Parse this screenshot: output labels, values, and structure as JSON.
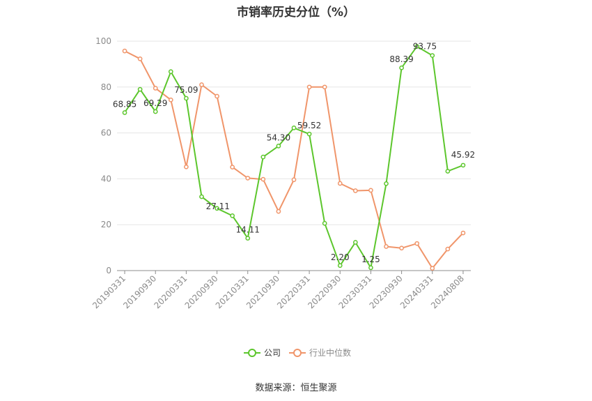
{
  "chart_data": {
    "type": "line",
    "title": "市销率历史分位（%）",
    "source": "数据来源：恒生聚源",
    "ylim": [
      0,
      100
    ],
    "yticks": [
      0,
      20,
      40,
      60,
      80,
      100
    ],
    "xtick_labels": [
      "20190331",
      "20190930",
      "20200331",
      "20200930",
      "20210331",
      "20210930",
      "20220331",
      "20220930",
      "20230331",
      "20230930",
      "20240331",
      "20240808"
    ],
    "x": [
      "20190331",
      "20190630",
      "20190930",
      "20191231",
      "20200331",
      "20200630",
      "20200930",
      "20201231",
      "20210331",
      "20210630",
      "20210930",
      "20211231",
      "20220331",
      "20220630",
      "20220930",
      "20221231",
      "20230331",
      "20230630",
      "20230930",
      "20231231",
      "20240331",
      "20240630",
      "20240808"
    ],
    "grid": true,
    "legend_position": "bottom",
    "series": [
      {
        "name": "公司",
        "color": "#5cc62c",
        "values": [
          68.85,
          79.0,
          69.29,
          86.7,
          75.09,
          32.2,
          27.11,
          23.9,
          14.11,
          49.5,
          54.3,
          62.2,
          59.52,
          20.6,
          2.2,
          12.3,
          1.25,
          37.9,
          88.39,
          97.7,
          93.75,
          43.3,
          45.92
        ],
        "labels": {
          "0": "68.85",
          "2": "69.29",
          "4": "75.09",
          "6": "27.11",
          "8": "14.11",
          "10": "54.30",
          "12": "59.52",
          "14": "2.20",
          "16": "1.25",
          "18": "88.39",
          "20": "93.75",
          "22": "45.92"
        }
      },
      {
        "name": "行业中位数",
        "color": "#f0956a",
        "values": [
          95.7,
          92.3,
          79.5,
          74.4,
          45.2,
          81.0,
          76.0,
          45.1,
          40.3,
          39.8,
          25.8,
          39.6,
          80.0,
          80.0,
          38.0,
          34.8,
          35.0,
          10.5,
          9.8,
          11.8,
          1.0,
          9.4,
          16.4
        ]
      }
    ]
  }
}
